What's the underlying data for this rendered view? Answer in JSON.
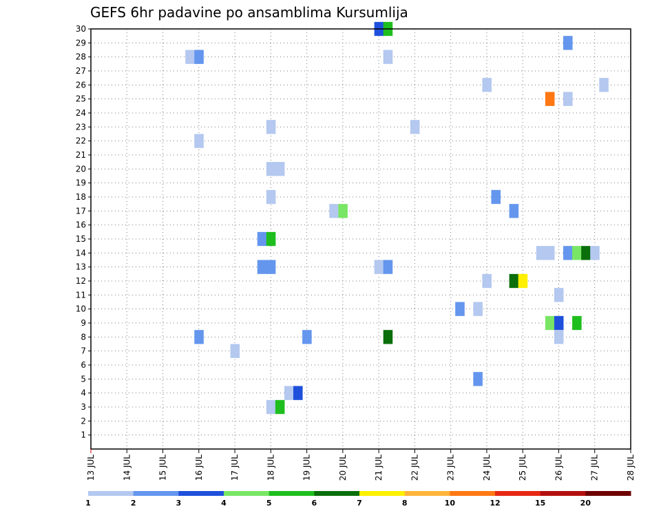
{
  "chart_data": {
    "type": "heatmap",
    "title": "GEFS 6hr padavine po ansamblima Kursumlija",
    "x_ticks": [
      "13 JUL",
      "14 JUL",
      "15 JUL",
      "16 JUL",
      "17 JUL",
      "18 JUL",
      "19 JUL",
      "20 JUL",
      "21 JUL",
      "22 JUL",
      "23 JUL",
      "24 JUL",
      "25 JUL",
      "26 JUL",
      "27 JUL",
      "28 JUL"
    ],
    "xlim": [
      13,
      28
    ],
    "xunit": "day of July",
    "y_ticks": [
      1,
      2,
      3,
      4,
      5,
      6,
      7,
      8,
      9,
      10,
      11,
      12,
      13,
      14,
      15,
      16,
      17,
      18,
      19,
      20,
      21,
      22,
      23,
      24,
      25,
      26,
      27,
      28,
      29,
      30
    ],
    "ylim": [
      0,
      30
    ],
    "grid": true,
    "colorbar": {
      "tick_labels": [
        "1",
        "2",
        "3",
        "4",
        "5",
        "6",
        "7",
        "8",
        "10",
        "12",
        "15",
        "20"
      ],
      "colors": [
        "#b4c8f0",
        "#6496ee",
        "#1e50dc",
        "#78e664",
        "#1ebe1e",
        "#0a6e0a",
        "#fff000",
        "#ffb43c",
        "#ff7814",
        "#e62814",
        "#b40f0f",
        "#6e0000"
      ]
    },
    "cells": [
      {
        "x": 21.0,
        "y": 30,
        "v": 3
      },
      {
        "x": 21.25,
        "y": 30,
        "v": 5
      },
      {
        "x": 26.25,
        "y": 29,
        "v": 2
      },
      {
        "x": 15.75,
        "y": 28,
        "v": 1
      },
      {
        "x": 16.0,
        "y": 28,
        "v": 2
      },
      {
        "x": 21.25,
        "y": 28,
        "v": 1
      },
      {
        "x": 24.0,
        "y": 26,
        "v": 1
      },
      {
        "x": 27.25,
        "y": 26,
        "v": 1
      },
      {
        "x": 25.75,
        "y": 25,
        "v": 10
      },
      {
        "x": 26.25,
        "y": 25,
        "v": 1
      },
      {
        "x": 18.0,
        "y": 23,
        "v": 1
      },
      {
        "x": 22.0,
        "y": 23,
        "v": 1
      },
      {
        "x": 16.0,
        "y": 22,
        "v": 1
      },
      {
        "x": 18.0,
        "y": 20,
        "v": 1
      },
      {
        "x": 18.25,
        "y": 20,
        "v": 1
      },
      {
        "x": 18.0,
        "y": 18,
        "v": 1
      },
      {
        "x": 24.25,
        "y": 18,
        "v": 2
      },
      {
        "x": 19.75,
        "y": 17,
        "v": 1
      },
      {
        "x": 20.0,
        "y": 17,
        "v": 4
      },
      {
        "x": 24.75,
        "y": 17,
        "v": 2
      },
      {
        "x": 17.75,
        "y": 15,
        "v": 2
      },
      {
        "x": 18.0,
        "y": 15,
        "v": 5
      },
      {
        "x": 25.5,
        "y": 14,
        "v": 1
      },
      {
        "x": 25.75,
        "y": 14,
        "v": 1
      },
      {
        "x": 26.25,
        "y": 14,
        "v": 2
      },
      {
        "x": 26.5,
        "y": 14,
        "v": 4
      },
      {
        "x": 26.75,
        "y": 14,
        "v": 6
      },
      {
        "x": 27.0,
        "y": 14,
        "v": 1
      },
      {
        "x": 17.75,
        "y": 13,
        "v": 2
      },
      {
        "x": 18.0,
        "y": 13,
        "v": 2
      },
      {
        "x": 21.0,
        "y": 13,
        "v": 1
      },
      {
        "x": 21.25,
        "y": 13,
        "v": 2
      },
      {
        "x": 24.0,
        "y": 12,
        "v": 1
      },
      {
        "x": 24.75,
        "y": 12,
        "v": 6
      },
      {
        "x": 25.0,
        "y": 12,
        "v": 7
      },
      {
        "x": 26.0,
        "y": 11,
        "v": 1
      },
      {
        "x": 23.25,
        "y": 10,
        "v": 2
      },
      {
        "x": 23.75,
        "y": 10,
        "v": 1
      },
      {
        "x": 25.75,
        "y": 9,
        "v": 4
      },
      {
        "x": 26.0,
        "y": 9,
        "v": 3
      },
      {
        "x": 26.5,
        "y": 9,
        "v": 5
      },
      {
        "x": 16.0,
        "y": 8,
        "v": 2
      },
      {
        "x": 19.0,
        "y": 8,
        "v": 2
      },
      {
        "x": 21.25,
        "y": 8,
        "v": 6
      },
      {
        "x": 26.0,
        "y": 8,
        "v": 1
      },
      {
        "x": 17.0,
        "y": 7,
        "v": 1
      },
      {
        "x": 23.75,
        "y": 5,
        "v": 2
      },
      {
        "x": 18.5,
        "y": 4,
        "v": 1
      },
      {
        "x": 18.75,
        "y": 4,
        "v": 3
      },
      {
        "x": 18.0,
        "y": 3,
        "v": 1
      },
      {
        "x": 18.25,
        "y": 3,
        "v": 5
      }
    ]
  }
}
